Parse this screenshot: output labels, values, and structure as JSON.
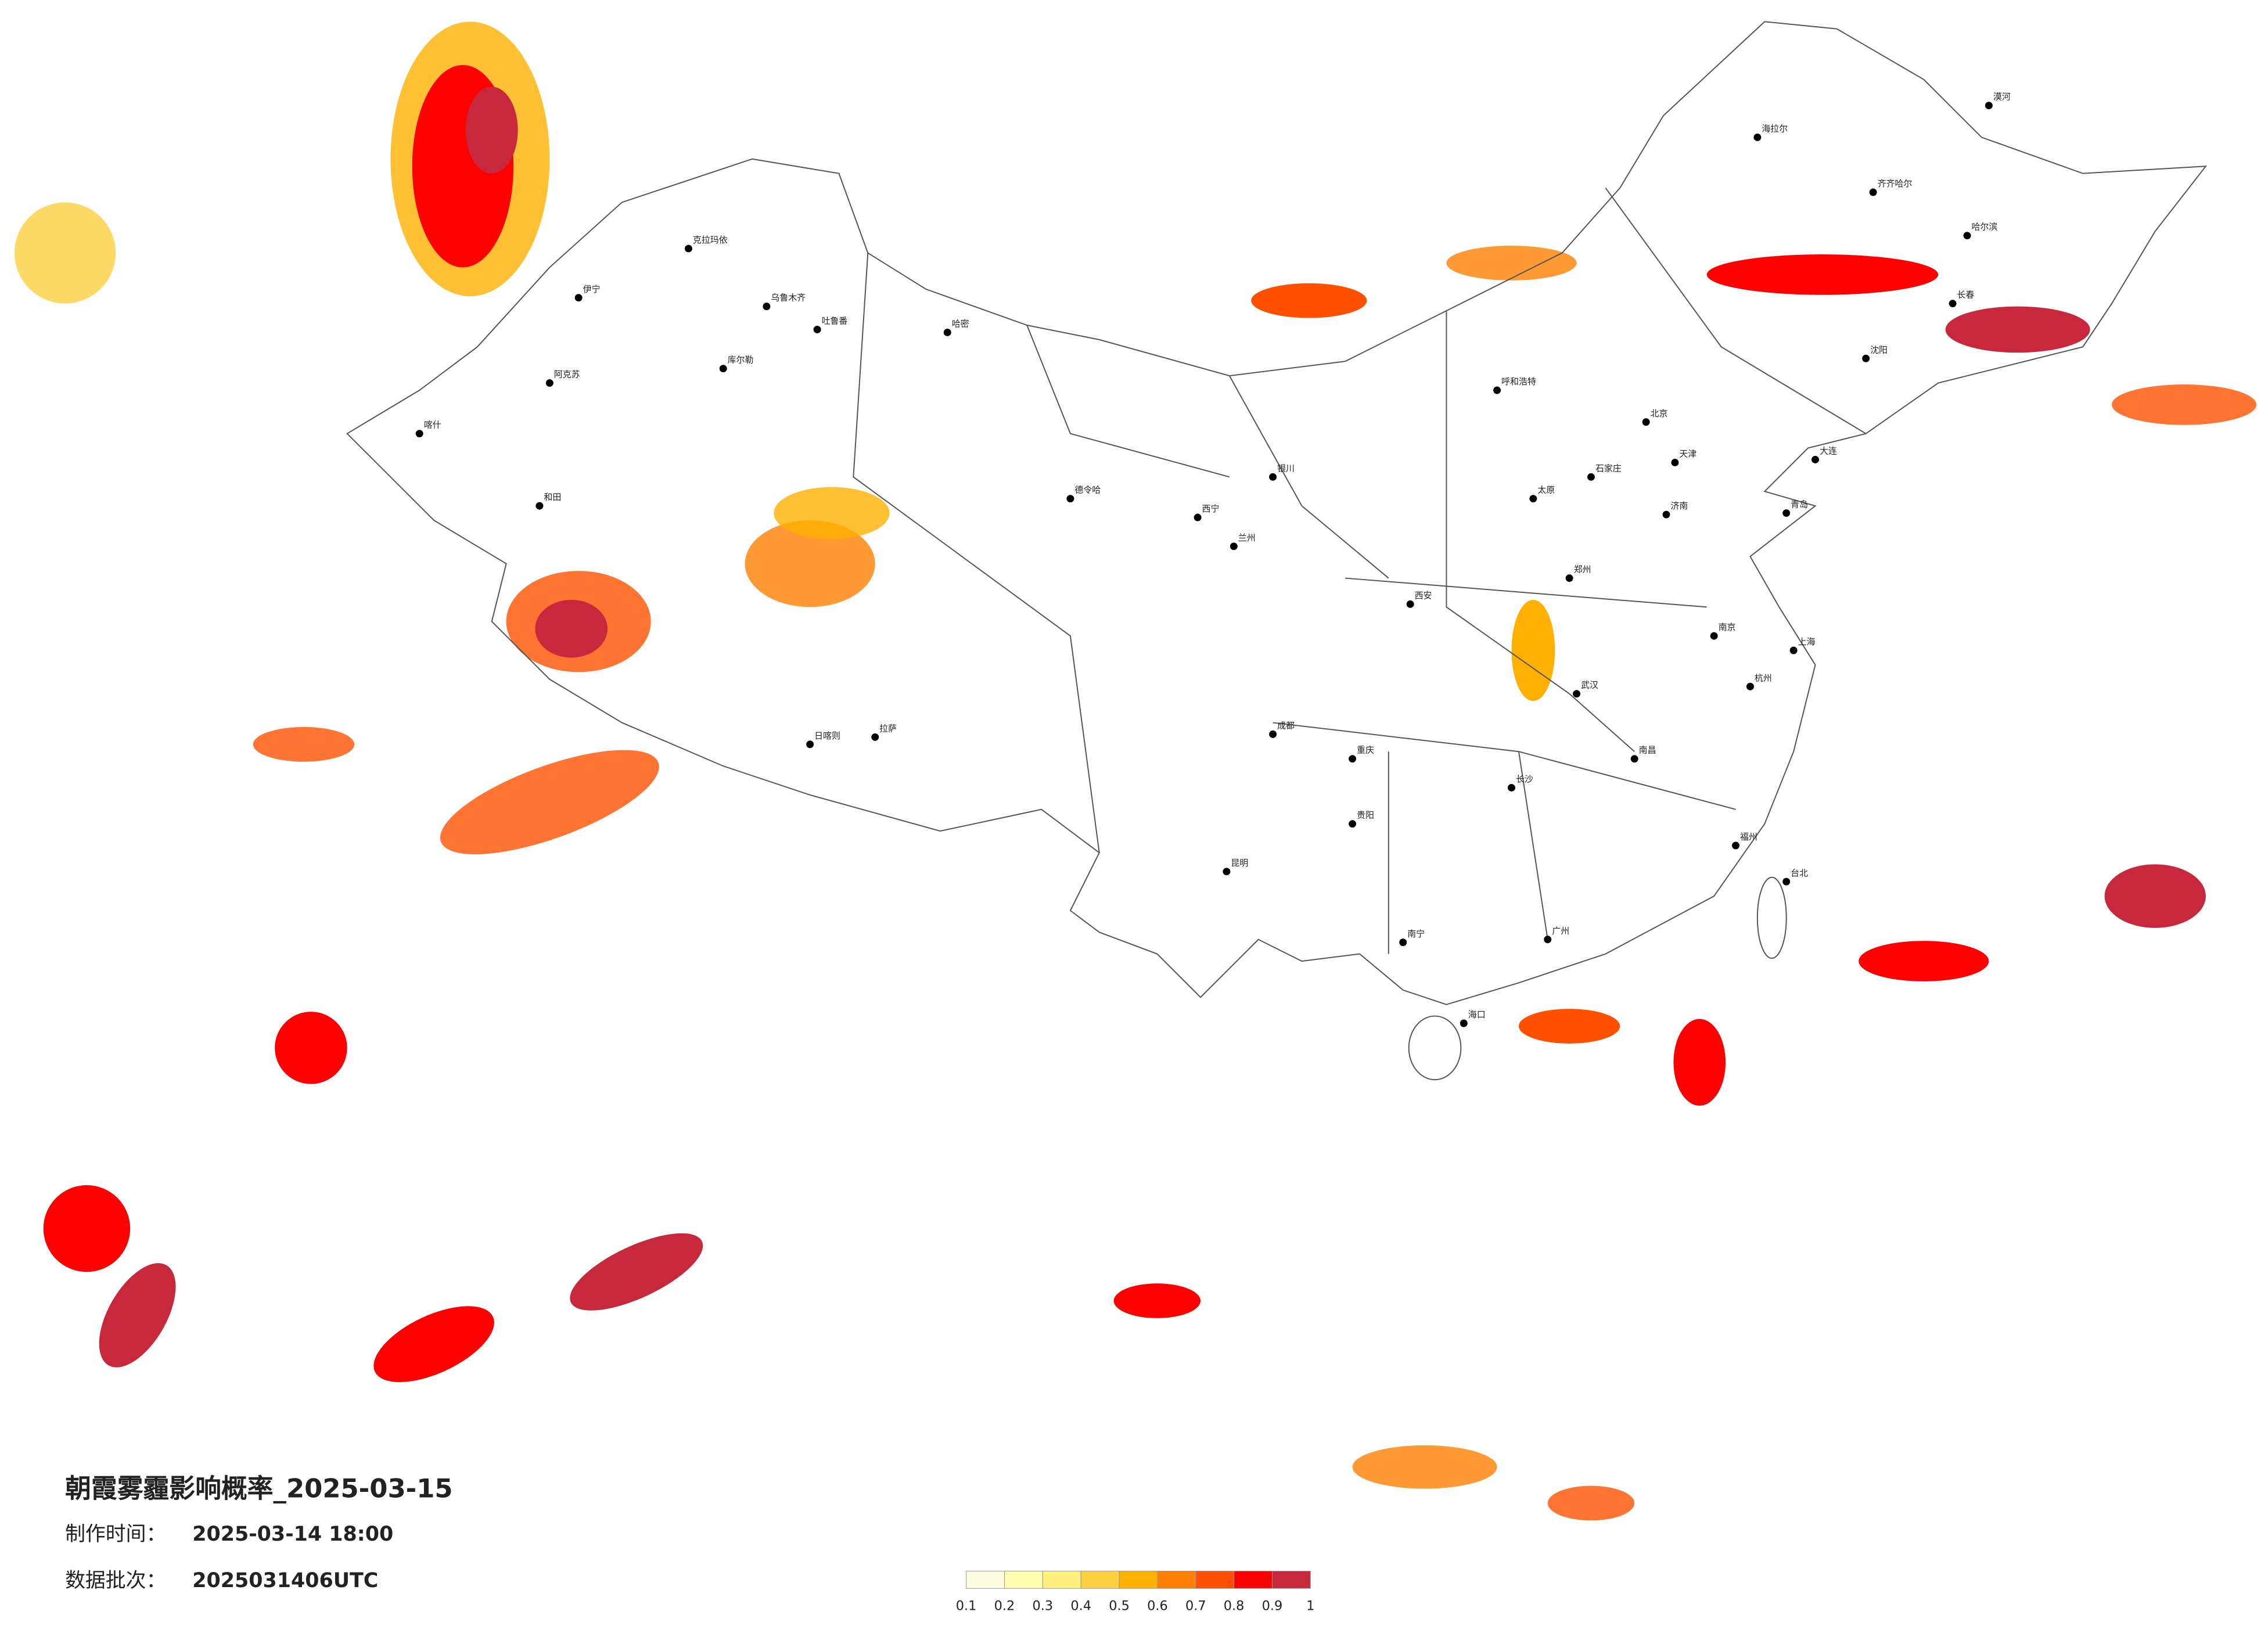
{
  "title": "朝霞雾霾影响概率_2025-03-15",
  "info": [
    {
      "label": "制作时间：",
      "value": "2025-03-14 18:00"
    },
    {
      "label": "数据批次：",
      "value": "2025031406UTC"
    }
  ],
  "legend": {
    "ticks": [
      0.1,
      0.2,
      0.3,
      0.4,
      0.5,
      0.6,
      0.7,
      0.8,
      0.9,
      1
    ],
    "colors": [
      "#fffde0",
      "#ffffb0",
      "#fff080",
      "#ffd040",
      "#ffb000",
      "#ff8000",
      "#ff5000",
      "#ff0000",
      "#c8283c"
    ]
  },
  "cities": [
    "乌鲁木齐",
    "克拉玛依",
    "伊宁",
    "阿克苏",
    "喀什",
    "和田",
    "库尔勒",
    "哈密",
    "吐鲁番",
    "拉萨",
    "日喀则",
    "德令哈",
    "西宁",
    "兰州",
    "银川",
    "呼和浩特",
    "北京",
    "天津",
    "石家庄",
    "太原",
    "西安",
    "郑州",
    "济南",
    "成都",
    "重庆",
    "昆明",
    "贵阳",
    "南宁",
    "广州",
    "长沙",
    "武汉",
    "南昌",
    "杭州",
    "南京",
    "上海",
    "福州",
    "台北",
    "海口",
    "哈尔滨",
    "长春",
    "沈阳",
    "大连",
    "青岛",
    "齐齐哈尔",
    "海拉尔",
    "漠河"
  ]
}
